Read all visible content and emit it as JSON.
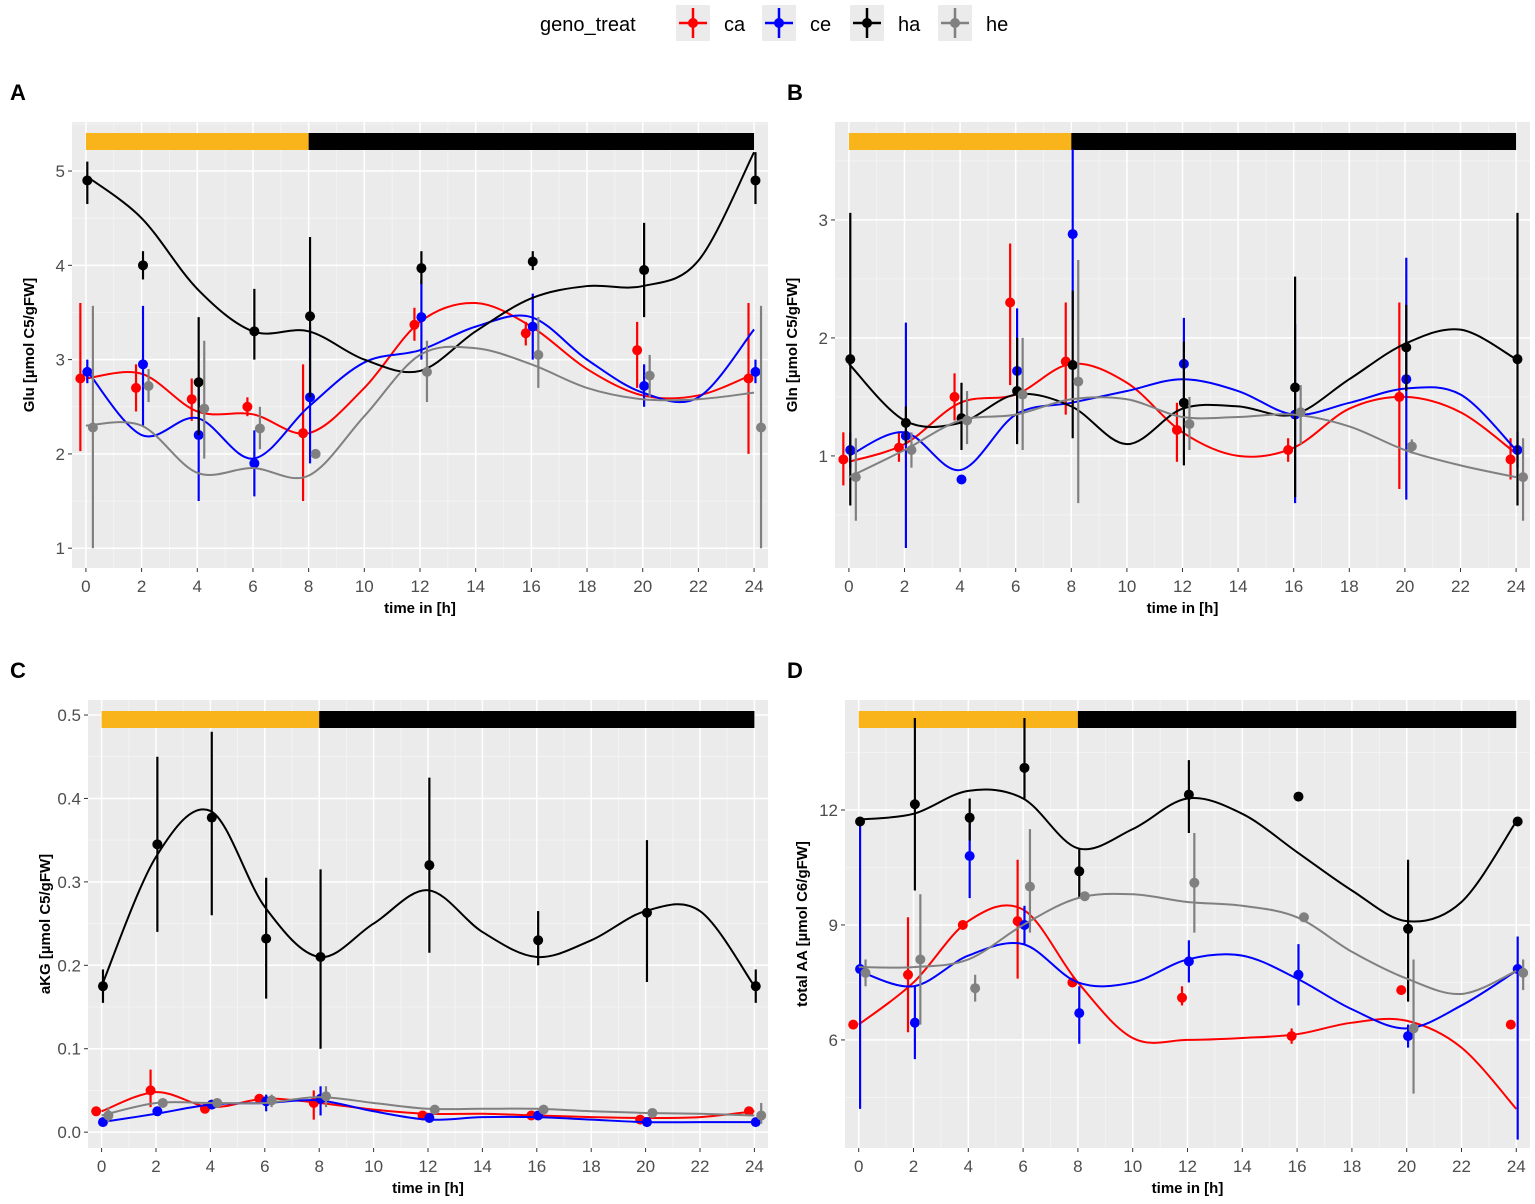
{
  "legend": {
    "title": "geno_treat",
    "entries": [
      {
        "key": "ca",
        "color": "#ff0000"
      },
      {
        "key": "ce",
        "color": "#0000ff"
      },
      {
        "key": "ha",
        "color": "#000000"
      },
      {
        "key": "he",
        "color": "#808080"
      }
    ]
  },
  "light_dark_bar": {
    "light": [
      0,
      8
    ],
    "dark": [
      8,
      24
    ],
    "light_color": "#f8b41a",
    "dark_color": "#000000"
  },
  "chart_data": [
    {
      "panel": "A",
      "type": "line",
      "xlabel": "time in [h]",
      "ylabel": "Glu [µmol C5/gFW]",
      "xlim": [
        -0.5,
        24.5
      ],
      "ylim": [
        0.79,
        5.52
      ],
      "xticks": [
        0,
        2,
        4,
        6,
        8,
        10,
        12,
        14,
        16,
        18,
        20,
        22,
        24
      ],
      "yticks": [
        1,
        2,
        3,
        4,
        5
      ],
      "x": [
        0,
        2,
        4,
        6,
        8,
        12,
        16,
        20,
        24
      ],
      "curve_x": [
        0,
        2,
        4,
        6,
        8,
        10,
        12,
        14,
        16,
        18,
        20,
        22,
        24
      ],
      "series": [
        {
          "name": "ca",
          "y": [
            2.8,
            2.7,
            2.58,
            2.5,
            2.22,
            3.37,
            3.28,
            3.1,
            2.8
          ],
          "lo": [
            2.03,
            2.45,
            2.35,
            2.4,
            1.5,
            3.2,
            3.15,
            2.7,
            2.0
          ],
          "hi": [
            3.6,
            2.95,
            2.8,
            2.6,
            2.95,
            3.55,
            3.4,
            3.4,
            3.6
          ],
          "curve": [
            2.8,
            2.85,
            2.45,
            2.42,
            2.22,
            2.7,
            3.4,
            3.6,
            3.35,
            2.9,
            2.62,
            2.62,
            2.85
          ]
        },
        {
          "name": "ce",
          "y": [
            2.87,
            2.95,
            2.2,
            1.9,
            2.6,
            3.45,
            3.35,
            2.72,
            2.87
          ],
          "lo": [
            2.75,
            2.3,
            1.5,
            1.55,
            1.9,
            3.0,
            3.0,
            2.5,
            2.75
          ],
          "hi": [
            3.0,
            3.57,
            2.8,
            2.25,
            3.35,
            3.85,
            3.7,
            2.95,
            3.0
          ],
          "curve": [
            2.9,
            2.2,
            2.38,
            1.95,
            2.5,
            2.97,
            3.1,
            3.35,
            3.45,
            3.0,
            2.65,
            2.6,
            3.32
          ]
        },
        {
          "name": "ha",
          "y": [
            4.9,
            4.0,
            2.76,
            3.3,
            3.46,
            3.97,
            4.04,
            3.95,
            4.9
          ],
          "lo": [
            4.65,
            3.85,
            2.2,
            3.0,
            2.6,
            3.8,
            3.95,
            3.45,
            4.65
          ],
          "hi": [
            5.1,
            4.15,
            3.45,
            3.75,
            4.3,
            4.15,
            4.15,
            4.45,
            5.2
          ],
          "curve": [
            4.95,
            4.5,
            3.75,
            3.3,
            3.3,
            3.0,
            2.88,
            3.3,
            3.65,
            3.78,
            3.78,
            4.05,
            5.2
          ]
        },
        {
          "name": "he",
          "y": [
            2.28,
            2.72,
            2.48,
            2.27,
            2.0,
            2.87,
            3.05,
            2.83,
            2.28
          ],
          "lo": [
            1.0,
            2.55,
            1.95,
            2.05,
            2.0,
            2.55,
            2.7,
            2.6,
            1.0
          ],
          "hi": [
            3.57,
            2.9,
            3.2,
            2.5,
            2.0,
            3.2,
            3.45,
            3.05,
            3.57
          ],
          "curve": [
            2.3,
            2.3,
            1.8,
            1.85,
            1.77,
            2.4,
            3.05,
            3.12,
            2.95,
            2.7,
            2.58,
            2.58,
            2.65
          ]
        }
      ]
    },
    {
      "panel": "B",
      "type": "line",
      "xlabel": "time in [h]",
      "ylabel": "Gln [µmol C5/gFW]",
      "xlim": [
        -0.5,
        24.5
      ],
      "ylim": [
        0.05,
        3.83
      ],
      "xticks": [
        0,
        2,
        4,
        6,
        8,
        10,
        12,
        14,
        16,
        18,
        20,
        22,
        24
      ],
      "yticks": [
        1,
        2,
        3
      ],
      "x": [
        0,
        2,
        4,
        6,
        8,
        12,
        16,
        20,
        24
      ],
      "curve_x": [
        0,
        2,
        4,
        6,
        8,
        10,
        12,
        14,
        16,
        18,
        20,
        22,
        24
      ],
      "series": [
        {
          "name": "ca",
          "y": [
            0.97,
            1.07,
            1.5,
            2.3,
            1.8,
            1.22,
            1.05,
            1.5,
            0.97
          ],
          "lo": [
            0.75,
            0.95,
            1.3,
            1.6,
            1.35,
            0.95,
            0.95,
            0.72,
            0.8
          ],
          "hi": [
            1.2,
            1.2,
            1.7,
            2.8,
            2.3,
            1.45,
            1.15,
            2.3,
            1.15
          ],
          "curve": [
            0.95,
            1.1,
            1.45,
            1.52,
            1.78,
            1.62,
            1.2,
            1.0,
            1.07,
            1.4,
            1.5,
            1.37,
            1.02
          ]
        },
        {
          "name": "ce",
          "y": [
            1.05,
            1.17,
            0.8,
            1.72,
            2.88,
            1.78,
            1.35,
            1.65,
            1.05
          ],
          "lo": [
            0.9,
            0.22,
            0.8,
            1.2,
            2.15,
            1.45,
            0.6,
            0.63,
            0.9
          ],
          "hi": [
            1.2,
            2.13,
            0.8,
            2.25,
            3.6,
            2.17,
            2.12,
            2.68,
            1.2
          ],
          "curve": [
            1.0,
            1.2,
            0.88,
            1.35,
            1.45,
            1.55,
            1.65,
            1.55,
            1.35,
            1.45,
            1.57,
            1.52,
            1.05
          ]
        },
        {
          "name": "ha",
          "y": [
            1.82,
            1.28,
            1.32,
            1.55,
            1.77,
            1.45,
            1.58,
            1.92,
            1.82
          ],
          "lo": [
            0.58,
            1.1,
            1.05,
            1.1,
            1.15,
            0.92,
            0.65,
            1.55,
            0.58
          ],
          "hi": [
            3.06,
            1.42,
            1.62,
            2.0,
            2.4,
            1.97,
            2.52,
            2.28,
            3.06
          ],
          "curve": [
            1.78,
            1.3,
            1.28,
            1.52,
            1.42,
            1.1,
            1.4,
            1.42,
            1.35,
            1.65,
            1.95,
            2.07,
            1.82
          ]
        },
        {
          "name": "he",
          "y": [
            0.82,
            1.05,
            1.3,
            1.52,
            1.63,
            1.27,
            1.37,
            1.08,
            0.82
          ],
          "lo": [
            0.45,
            0.9,
            1.1,
            1.05,
            0.6,
            1.05,
            1.1,
            1.02,
            0.45
          ],
          "hi": [
            1.15,
            1.2,
            1.55,
            2.0,
            2.66,
            1.5,
            1.6,
            1.14,
            1.15
          ],
          "curve": [
            0.82,
            1.05,
            1.3,
            1.35,
            1.48,
            1.48,
            1.33,
            1.33,
            1.35,
            1.25,
            1.05,
            0.92,
            0.82
          ]
        }
      ]
    },
    {
      "panel": "C",
      "type": "line",
      "xlabel": "time in [h]",
      "ylabel": "aKG [µmol C5/gFW]",
      "xlim": [
        -0.5,
        24.5
      ],
      "ylim": [
        -0.019,
        0.518
      ],
      "xticks": [
        0,
        2,
        4,
        6,
        8,
        10,
        12,
        14,
        16,
        18,
        20,
        22,
        24
      ],
      "yticks": [
        0.0,
        0.1,
        0.2,
        0.3,
        0.4,
        0.5
      ],
      "ytick_labels": [
        "0.0",
        "0.1",
        "0.2",
        "0.3",
        "0.4",
        "0.5"
      ],
      "x": [
        0,
        2,
        4,
        6,
        8,
        12,
        16,
        20,
        24
      ],
      "curve_x": [
        0,
        2,
        4,
        6,
        8,
        10,
        12,
        14,
        16,
        18,
        20,
        22,
        24
      ],
      "series": [
        {
          "name": "ca",
          "y": [
            0.025,
            0.05,
            0.028,
            0.04,
            0.035,
            0.02,
            0.02,
            0.015,
            0.025
          ],
          "lo": [
            0.02,
            0.03,
            0.025,
            0.035,
            0.015,
            0.017,
            0.017,
            0.012,
            0.02
          ],
          "hi": [
            0.03,
            0.075,
            0.031,
            0.045,
            0.05,
            0.023,
            0.023,
            0.018,
            0.03
          ],
          "curve": [
            0.025,
            0.048,
            0.03,
            0.04,
            0.035,
            0.027,
            0.022,
            0.022,
            0.02,
            0.018,
            0.017,
            0.018,
            0.025
          ]
        },
        {
          "name": "ce",
          "y": [
            0.012,
            0.025,
            0.033,
            0.037,
            0.04,
            0.017,
            0.02,
            0.012,
            0.012
          ],
          "lo": [
            0.01,
            0.02,
            0.03,
            0.025,
            0.02,
            0.015,
            0.015,
            0.01,
            0.01
          ],
          "hi": [
            0.015,
            0.03,
            0.036,
            0.045,
            0.055,
            0.02,
            0.025,
            0.015,
            0.015
          ],
          "curve": [
            0.012,
            0.022,
            0.033,
            0.035,
            0.038,
            0.025,
            0.015,
            0.018,
            0.018,
            0.015,
            0.012,
            0.012,
            0.012
          ]
        },
        {
          "name": "ha",
          "y": [
            0.175,
            0.345,
            0.377,
            0.232,
            0.21,
            0.32,
            0.23,
            0.263,
            0.175
          ],
          "lo": [
            0.155,
            0.24,
            0.26,
            0.16,
            0.1,
            0.215,
            0.2,
            0.18,
            0.155
          ],
          "hi": [
            0.195,
            0.45,
            0.48,
            0.305,
            0.315,
            0.425,
            0.265,
            0.35,
            0.195
          ],
          "curve": [
            0.175,
            0.33,
            0.385,
            0.27,
            0.21,
            0.25,
            0.29,
            0.24,
            0.21,
            0.23,
            0.265,
            0.265,
            0.175
          ]
        },
        {
          "name": "he",
          "y": [
            0.02,
            0.035,
            0.035,
            0.038,
            0.043,
            0.027,
            0.027,
            0.023,
            0.02
          ],
          "lo": [
            0.012,
            0.03,
            0.03,
            0.03,
            0.03,
            0.022,
            0.022,
            0.02,
            0.01
          ],
          "hi": [
            0.03,
            0.04,
            0.04,
            0.045,
            0.055,
            0.032,
            0.032,
            0.026,
            0.035
          ],
          "curve": [
            0.02,
            0.035,
            0.035,
            0.035,
            0.042,
            0.035,
            0.028,
            0.028,
            0.028,
            0.025,
            0.023,
            0.022,
            0.02
          ]
        }
      ]
    },
    {
      "panel": "D",
      "type": "line",
      "xlabel": "time in [h]",
      "ylabel": "total AA [µmol C6/gFW]",
      "xlim": [
        -0.5,
        24.5
      ],
      "ylim": [
        3.18,
        14.87
      ],
      "xticks": [
        0,
        2,
        4,
        6,
        8,
        10,
        12,
        14,
        16,
        18,
        20,
        22,
        24
      ],
      "yticks": [
        6,
        9,
        12
      ],
      "x": [
        0,
        2,
        4,
        6,
        8,
        12,
        16,
        20,
        24
      ],
      "curve_x": [
        0,
        2,
        4,
        6,
        8,
        10,
        12,
        14,
        16,
        18,
        20,
        22,
        24
      ],
      "series": [
        {
          "name": "ca",
          "y": [
            6.4,
            7.7,
            9.0,
            9.1,
            7.5,
            7.1,
            6.1,
            7.3,
            6.4
          ],
          "lo": [
            6.3,
            6.2,
            8.9,
            7.6,
            7.4,
            6.9,
            5.9,
            7.2,
            6.3
          ],
          "hi": [
            6.5,
            9.2,
            9.1,
            10.7,
            7.6,
            7.4,
            6.3,
            7.4,
            6.5
          ],
          "curve": [
            6.4,
            7.5,
            9.1,
            9.4,
            7.5,
            6.05,
            6.0,
            6.05,
            6.15,
            6.45,
            6.5,
            5.8,
            4.2
          ]
        },
        {
          "name": "ce",
          "y": [
            7.85,
            6.45,
            10.8,
            9.0,
            6.7,
            8.05,
            7.7,
            6.1,
            7.85
          ],
          "lo": [
            4.2,
            5.5,
            9.7,
            8.5,
            5.9,
            7.5,
            6.9,
            5.8,
            3.4
          ],
          "hi": [
            11.8,
            7.4,
            11.9,
            9.5,
            7.4,
            8.6,
            8.5,
            6.4,
            8.7
          ],
          "curve": [
            7.8,
            7.4,
            8.2,
            8.5,
            7.5,
            7.5,
            8.1,
            8.2,
            7.6,
            6.8,
            6.3,
            6.9,
            7.8
          ]
        },
        {
          "name": "ha",
          "y": [
            11.7,
            12.15,
            11.8,
            13.1,
            10.4,
            12.4,
            12.35,
            8.9,
            11.7
          ],
          "lo": [
            11.6,
            9.9,
            11.2,
            12.3,
            9.7,
            11.4,
            12.3,
            7.0,
            11.6
          ],
          "hi": [
            11.8,
            14.4,
            12.3,
            14.4,
            11.0,
            13.3,
            12.4,
            10.7,
            11.8
          ],
          "curve": [
            11.75,
            11.9,
            12.5,
            12.3,
            11.0,
            11.5,
            12.3,
            11.9,
            10.9,
            9.9,
            9.1,
            9.6,
            11.7
          ]
        },
        {
          "name": "he",
          "y": [
            7.75,
            8.1,
            7.35,
            10.0,
            9.75,
            10.1,
            9.2,
            6.3,
            7.75
          ],
          "lo": [
            7.4,
            6.4,
            7.0,
            8.8,
            9.7,
            8.8,
            9.1,
            4.6,
            7.3
          ],
          "hi": [
            8.1,
            9.8,
            7.7,
            11.5,
            9.8,
            11.4,
            9.3,
            8.1,
            8.1
          ],
          "curve": [
            7.9,
            7.9,
            8.1,
            9.0,
            9.7,
            9.8,
            9.6,
            9.5,
            9.2,
            8.3,
            7.6,
            7.2,
            7.8
          ]
        }
      ]
    }
  ]
}
